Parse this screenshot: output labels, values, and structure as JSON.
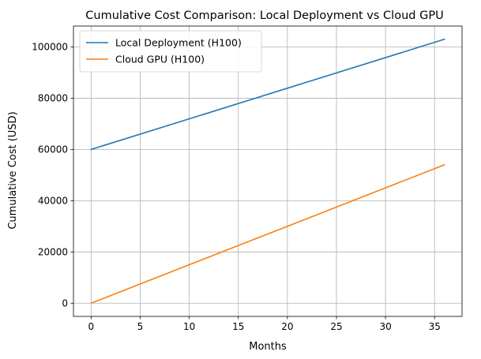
{
  "chart_data": {
    "type": "line",
    "title": "Cumulative Cost Comparison: Local Deployment vs Cloud GPU",
    "xlabel": "Months",
    "ylabel": "Cumulative Cost (USD)",
    "xlim": [
      -1.8,
      37.8
    ],
    "ylim": [
      -5150,
      108150
    ],
    "xticks": [
      0,
      5,
      10,
      15,
      20,
      25,
      30,
      35
    ],
    "yticks": [
      0,
      20000,
      40000,
      60000,
      80000,
      100000
    ],
    "grid": true,
    "legend_position": "top-left",
    "series": [
      {
        "name": "Local Deployment (H100)",
        "color": "#1f77b4",
        "x": [
          0,
          36
        ],
        "y": [
          60000,
          103000
        ]
      },
      {
        "name": "Cloud GPU (H100)",
        "color": "#ff7f0e",
        "x": [
          0,
          36
        ],
        "y": [
          0,
          54000
        ]
      }
    ]
  }
}
